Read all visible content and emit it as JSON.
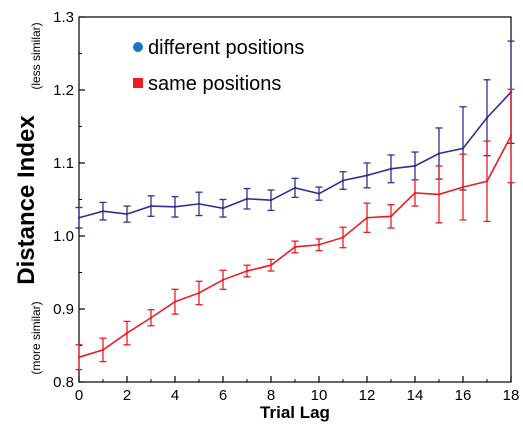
{
  "chart_data": {
    "type": "line",
    "xlabel": "Trial Lag",
    "ylabel": "Distance Index",
    "ylabel_top_note": "(less similar)",
    "ylabel_bottom_note": "(more similar)",
    "xlim": [
      0,
      18
    ],
    "ylim": [
      0.8,
      1.3
    ],
    "x_ticks": [
      0,
      2,
      4,
      6,
      8,
      10,
      12,
      14,
      16,
      18
    ],
    "y_ticks": [
      "0.8",
      "0.9",
      "1.0",
      "1.1",
      "1.2",
      "1.3"
    ],
    "y_tick_values": [
      0.8,
      0.9,
      1.0,
      1.1,
      1.2,
      1.3
    ],
    "grid": false,
    "legend_position": "top-left",
    "x": [
      0,
      1,
      2,
      3,
      4,
      5,
      6,
      7,
      8,
      9,
      10,
      11,
      12,
      13,
      14,
      15,
      16,
      17,
      18
    ],
    "series": [
      {
        "name": "different positions",
        "color": "#2e3192",
        "legend_color": "#1a75c4",
        "marker": "circle",
        "values": [
          1.025,
          1.034,
          1.03,
          1.041,
          1.04,
          1.044,
          1.038,
          1.051,
          1.049,
          1.066,
          1.058,
          1.076,
          1.083,
          1.092,
          1.096,
          1.113,
          1.12,
          1.162,
          1.197
        ],
        "errors": [
          0.014,
          0.012,
          0.011,
          0.014,
          0.014,
          0.016,
          0.012,
          0.014,
          0.014,
          0.013,
          0.009,
          0.012,
          0.017,
          0.019,
          0.019,
          0.035,
          0.057,
          0.052,
          0.07
        ]
      },
      {
        "name": "same positions",
        "color": "#ed1c24",
        "legend_color": "#ed1c24",
        "marker": "square",
        "values": [
          0.834,
          0.844,
          0.867,
          0.888,
          0.91,
          0.922,
          0.94,
          0.952,
          0.96,
          0.985,
          0.988,
          0.998,
          1.025,
          1.027,
          1.059,
          1.057,
          1.067,
          1.075,
          1.137
        ],
        "errors": [
          0.017,
          0.016,
          0.016,
          0.011,
          0.017,
          0.016,
          0.013,
          0.008,
          0.008,
          0.008,
          0.008,
          0.014,
          0.02,
          0.016,
          0.018,
          0.039,
          0.045,
          0.055,
          0.064
        ]
      }
    ]
  }
}
